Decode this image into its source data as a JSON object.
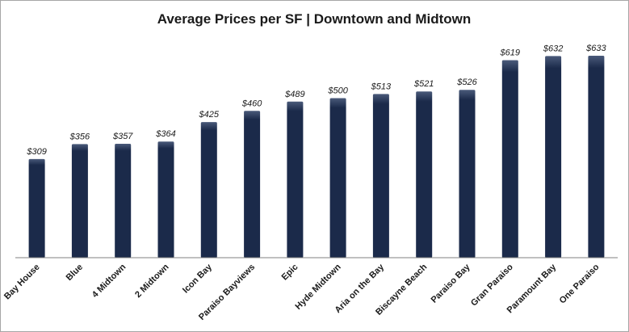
{
  "chart_data": {
    "type": "bar",
    "title": "Average Prices per SF | Downtown and Midtown",
    "xlabel": "",
    "ylabel": "",
    "ylim": [
      0,
      700
    ],
    "grid": false,
    "legend": "none",
    "bar_color": "#1b2a4a",
    "bar_highlight": "#4a5a7a",
    "value_prefix": "$",
    "categories": [
      "Bay House",
      "Blue",
      "4 Midtown",
      "2 Midtown",
      "Icon Bay",
      "Paraiso Bayviews",
      "Epic",
      "Hyde Midtown",
      "Aria on the Bay",
      "Biscayne Beach",
      "Paraiso Bay",
      "Gran Paraiso",
      "Paramount Bay",
      "One Paraiso"
    ],
    "values": [
      309,
      356,
      357,
      364,
      425,
      460,
      489,
      500,
      513,
      521,
      526,
      619,
      632,
      633
    ]
  }
}
